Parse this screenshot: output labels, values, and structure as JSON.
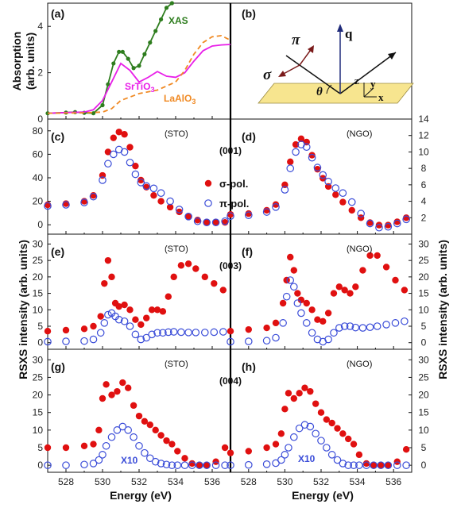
{
  "figure": {
    "x_label": "Energy (eV)",
    "left_y_label": "RSXS intensity (arb. units)",
    "right_y_label": "RSXS intensity (arb. units)",
    "absorption_y_label": [
      "Absorption",
      "(arb. units)"
    ],
    "x_ticks": [
      "528",
      "530",
      "532",
      "534",
      "536"
    ],
    "legend": {
      "sigma": "σ-pol.",
      "pi": "π-pol."
    },
    "colors": {
      "sigma": "#e01010",
      "pi": "#3a4cd8",
      "xas": "#2e7d1e",
      "srtio3": "#e81ee8",
      "laalo3": "#f08a24",
      "plane": "#f7e58f"
    }
  },
  "panels": {
    "a": {
      "label": "(a)",
      "curves": {
        "xas": "XAS",
        "srtio3": "SrTiO",
        "srtio3_sub": "3",
        "laalo3": "LaAlO",
        "laalo3_sub": "3"
      }
    },
    "b": {
      "label": "(b)",
      "symbols": {
        "pi": "π",
        "sigma": "σ",
        "q": "q",
        "theta": "θ",
        "x": "x",
        "y": "y",
        "z": "z"
      }
    },
    "c": {
      "label": "(c)",
      "substrate": "(STO)"
    },
    "d": {
      "label": "(d)",
      "substrate": "(NGO)"
    },
    "e": {
      "label": "(e)",
      "substrate": "(STO)"
    },
    "f": {
      "label": "(f)",
      "substrate": "(NGO)"
    },
    "g": {
      "label": "(g)",
      "substrate": "(STO)",
      "scale_note": "X10"
    },
    "h": {
      "label": "(h)",
      "substrate": "(NGO)",
      "scale_note": "X10"
    }
  },
  "reflections": {
    "r001": "(001)",
    "r003": "(003)",
    "r004": "(004)"
  },
  "chart_data": [
    {
      "panel": "a",
      "type": "line",
      "xlim": [
        527,
        537
      ],
      "ylim": [
        0,
        5
      ],
      "y_ticks": [
        0,
        2,
        4
      ],
      "series": [
        {
          "name": "XAS",
          "style": "line+filled-dots",
          "color": "#2e7d1e",
          "x": [
            527,
            528,
            528.5,
            529,
            529.5,
            530,
            530.3,
            530.6,
            530.9,
            531.1,
            531.4,
            531.7,
            532.0,
            532.3,
            532.6,
            532.9,
            533.2,
            533.5,
            533.8
          ],
          "y": [
            0.25,
            0.28,
            0.3,
            0.27,
            0.25,
            0.6,
            1.5,
            2.4,
            2.9,
            2.9,
            2.6,
            2.2,
            2.3,
            2.8,
            3.3,
            3.8,
            4.3,
            4.8,
            5.0
          ]
        },
        {
          "name": "SrTiO3",
          "style": "solid",
          "color": "#e81ee8",
          "x": [
            527,
            528,
            529,
            529.5,
            530,
            530.5,
            531,
            531.5,
            532,
            532.5,
            533,
            533.5,
            534,
            534.5,
            535,
            535.5,
            536,
            536.5,
            537
          ],
          "y": [
            0.25,
            0.28,
            0.3,
            0.4,
            0.8,
            1.6,
            2.4,
            2.1,
            1.6,
            1.8,
            2.05,
            1.85,
            1.8,
            2.0,
            2.5,
            2.95,
            3.15,
            3.2,
            3.22
          ]
        },
        {
          "name": "LaAlO3",
          "style": "dashed",
          "color": "#f08a24",
          "x": [
            527,
            528,
            529,
            530,
            530.5,
            531,
            532,
            533,
            534,
            534.5,
            535,
            535.5,
            536,
            536.5,
            537
          ],
          "y": [
            0.25,
            0.26,
            0.27,
            0.3,
            0.45,
            0.8,
            1.1,
            1.25,
            1.6,
            2.1,
            2.8,
            3.3,
            3.55,
            3.6,
            3.4
          ]
        }
      ]
    },
    {
      "panel": "c",
      "type": "scatter",
      "substrate": "STO",
      "reflection": "(001)",
      "xlim": [
        527,
        537
      ],
      "ylim": [
        -8,
        90
      ],
      "y_ticks": [
        0,
        20,
        40,
        60,
        80
      ],
      "series": [
        {
          "name": "σ-pol.",
          "marker": "filled-circle",
          "color": "#e01010",
          "x": [
            527,
            528,
            529,
            529.5,
            530,
            530.3,
            530.6,
            530.9,
            531.2,
            531.5,
            531.8,
            532.1,
            532.4,
            532.8,
            533.2,
            533.7,
            534.2,
            534.7,
            535.2,
            535.7,
            536.2,
            536.7
          ],
          "y": [
            17,
            18,
            20,
            25,
            42,
            62,
            74,
            79,
            77,
            66,
            50,
            38,
            32,
            25,
            20,
            15,
            11,
            7,
            4,
            2,
            2,
            2
          ]
        },
        {
          "name": "π-pol.",
          "marker": "open-circle",
          "color": "#3a4cd8",
          "x": [
            527,
            528,
            529,
            529.5,
            530,
            530.3,
            530.6,
            530.9,
            531.2,
            531.5,
            531.8,
            532.1,
            532.4,
            532.8,
            533.2,
            533.7,
            534.2,
            534.7,
            535.2,
            535.7,
            536.2,
            536.7
          ],
          "y": [
            16,
            17,
            19,
            24,
            38,
            52,
            60,
            64,
            62,
            53,
            43,
            36,
            33,
            31,
            27,
            20,
            13,
            7,
            3,
            2,
            2,
            3
          ]
        }
      ]
    },
    {
      "panel": "d",
      "type": "scatter",
      "substrate": "NGO",
      "reflection": "(001)",
      "xlim": [
        527,
        537
      ],
      "y_axis": "right",
      "ylim": [
        0,
        14
      ],
      "y_ticks": [
        2,
        4,
        6,
        8,
        10,
        12,
        14
      ],
      "series": [
        {
          "name": "σ-pol.",
          "marker": "filled-circle",
          "color": "#e01010",
          "x": [
            527,
            528,
            529,
            529.5,
            530,
            530.3,
            530.6,
            530.9,
            531.2,
            531.5,
            531.8,
            532.1,
            532.4,
            532.8,
            533.2,
            533.7,
            534.2,
            534.7,
            535.2,
            535.7,
            536.2,
            536.7
          ],
          "y": [
            2.4,
            2.5,
            2.9,
            3.6,
            6.0,
            8.8,
            10.9,
            11.6,
            11.2,
            9.6,
            7.9,
            6.8,
            5.8,
            4.8,
            3.9,
            2.9,
            2.0,
            1.4,
            1.1,
            1.1,
            1.5,
            2.0
          ]
        },
        {
          "name": "π-pol.",
          "marker": "open-circle",
          "color": "#3a4cd8",
          "x": [
            527,
            528,
            529,
            529.5,
            530,
            530.3,
            530.6,
            530.9,
            531.2,
            531.5,
            531.8,
            532.1,
            532.4,
            532.8,
            533.2,
            533.7,
            534.2,
            534.7,
            535.2,
            535.7,
            536.2,
            536.7
          ],
          "y": [
            2.2,
            2.3,
            2.7,
            3.3,
            5.4,
            8.0,
            10.0,
            10.9,
            10.6,
            9.3,
            8.1,
            7.2,
            6.4,
            5.6,
            5.0,
            3.9,
            2.5,
            1.3,
            0.8,
            0.9,
            1.3,
            1.8
          ]
        }
      ]
    },
    {
      "panel": "e",
      "type": "scatter",
      "substrate": "STO",
      "reflection": "(003)",
      "xlim": [
        527,
        537
      ],
      "ylim": [
        -2,
        33
      ],
      "y_ticks": [
        0,
        5,
        10,
        15,
        20,
        25,
        30
      ],
      "series": [
        {
          "name": "σ-pol.",
          "marker": "filled-circle",
          "color": "#e01010",
          "x": [
            527,
            528,
            529,
            529.5,
            529.9,
            530.1,
            530.3,
            530.5,
            530.7,
            530.9,
            531.2,
            531.5,
            531.8,
            532.1,
            532.4,
            532.7,
            533.0,
            533.3,
            533.6,
            533.9,
            534.3,
            534.7,
            535.1,
            535.6,
            536.1,
            536.6
          ],
          "y": [
            3.5,
            3.8,
            4.2,
            5,
            8,
            18,
            25,
            20,
            12,
            11,
            11.5,
            10,
            7,
            5.5,
            7.5,
            10,
            10,
            9.5,
            14,
            20,
            23.5,
            24,
            22.5,
            20,
            18,
            16
          ]
        },
        {
          "name": "π-pol.",
          "marker": "open-circle",
          "color": "#3a4cd8",
          "x": [
            527,
            528,
            529,
            529.5,
            529.9,
            530.1,
            530.3,
            530.5,
            530.7,
            530.9,
            531.2,
            531.5,
            531.8,
            532.1,
            532.4,
            532.7,
            533.0,
            533.3,
            533.6,
            533.9,
            534.3,
            534.7,
            535.1,
            535.6,
            536.1,
            536.6
          ],
          "y": [
            0.3,
            0.4,
            0.5,
            1,
            3,
            6,
            8.5,
            9,
            8,
            7,
            6.5,
            5,
            2.5,
            1,
            1.5,
            2.5,
            3,
            3,
            3.2,
            3.3,
            3.2,
            3.1,
            3.1,
            3.1,
            3.2,
            3.3
          ]
        }
      ]
    },
    {
      "panel": "f",
      "type": "scatter",
      "substrate": "NGO",
      "reflection": "(003)",
      "xlim": [
        527,
        537
      ],
      "y_axis": "right",
      "ylim": [
        -2,
        33
      ],
      "y_ticks": [
        0,
        5,
        10,
        15,
        20,
        25,
        30
      ],
      "series": [
        {
          "name": "σ-pol.",
          "marker": "filled-circle",
          "color": "#e01010",
          "x": [
            527,
            528,
            529,
            529.5,
            529.9,
            530.1,
            530.3,
            530.5,
            530.7,
            530.9,
            531.2,
            531.5,
            531.8,
            532.1,
            532.4,
            532.7,
            533.0,
            533.3,
            533.6,
            533.9,
            534.3,
            534.7,
            535.1,
            535.6,
            536.1,
            536.6
          ],
          "y": [
            3.5,
            4,
            4.5,
            6,
            12,
            19,
            26,
            22,
            15,
            13,
            12,
            10,
            7,
            6.5,
            9,
            15,
            17,
            16,
            15,
            17,
            22,
            26.5,
            26.5,
            23,
            19,
            16
          ]
        },
        {
          "name": "π-pol.",
          "marker": "open-circle",
          "color": "#3a4cd8",
          "x": [
            527,
            528,
            529,
            529.5,
            529.9,
            530.1,
            530.3,
            530.5,
            530.7,
            530.9,
            531.2,
            531.5,
            531.8,
            532.1,
            532.4,
            532.7,
            533.0,
            533.3,
            533.6,
            533.9,
            534.3,
            534.7,
            535.1,
            535.6,
            536.1,
            536.6
          ],
          "y": [
            0.3,
            0.4,
            0.6,
            1.5,
            6,
            14,
            19,
            17,
            12,
            9,
            6,
            3,
            1,
            0.3,
            1,
            3,
            4.5,
            5,
            5,
            4.6,
            4.5,
            4.7,
            5,
            5.5,
            6,
            6.5
          ]
        }
      ]
    },
    {
      "panel": "g",
      "type": "scatter",
      "substrate": "STO",
      "reflection": "(004)",
      "xlim": [
        527,
        537
      ],
      "ylim": [
        -2,
        33
      ],
      "y_ticks": [
        0,
        5,
        10,
        15,
        20,
        25,
        30
      ],
      "annotation": "π-pol. scaled X10",
      "series": [
        {
          "name": "σ-pol.",
          "marker": "filled-circle",
          "color": "#e01010",
          "x": [
            527,
            528,
            529,
            529.5,
            529.8,
            530.0,
            530.2,
            530.5,
            530.8,
            531.1,
            531.4,
            531.7,
            532.0,
            532.3,
            532.6,
            532.9,
            533.2,
            533.5,
            533.8,
            534.1,
            534.5,
            534.9,
            535.3,
            535.7,
            536.2,
            536.7
          ],
          "y": [
            5,
            5,
            5.5,
            6,
            10,
            19,
            23,
            20,
            21,
            23.5,
            22,
            17,
            14,
            12.5,
            11.5,
            10,
            8.5,
            7,
            6,
            4,
            2,
            0.5,
            0,
            0,
            1,
            5
          ]
        },
        {
          "name": "π-pol.",
          "marker": "open-circle",
          "color": "#3a4cd8",
          "x": [
            527,
            528,
            529,
            529.5,
            529.8,
            530.0,
            530.2,
            530.5,
            530.8,
            531.1,
            531.4,
            531.7,
            532.0,
            532.3,
            532.6,
            532.9,
            533.2,
            533.5,
            533.8,
            534.1,
            534.5,
            534.9,
            535.3,
            535.7,
            536.2,
            536.7
          ],
          "y": [
            0,
            0,
            0.2,
            0.5,
            1.5,
            3,
            5.5,
            8,
            10,
            11,
            10,
            8,
            5.5,
            3.5,
            2,
            1,
            0.5,
            0.2,
            0,
            0,
            0,
            0,
            0,
            0,
            0,
            0
          ]
        }
      ]
    },
    {
      "panel": "h",
      "type": "scatter",
      "substrate": "NGO",
      "reflection": "(004)",
      "xlim": [
        527,
        537
      ],
      "y_axis": "right",
      "ylim": [
        -2,
        33
      ],
      "y_ticks": [
        0,
        5,
        10,
        15,
        20,
        25,
        30
      ],
      "annotation": "π-pol. scaled X10",
      "series": [
        {
          "name": "σ-pol.",
          "marker": "filled-circle",
          "color": "#e01010",
          "x": [
            527,
            528,
            529,
            529.5,
            529.8,
            530.0,
            530.2,
            530.5,
            530.8,
            531.1,
            531.4,
            531.7,
            532.0,
            532.3,
            532.6,
            532.9,
            533.2,
            533.5,
            533.8,
            534.1,
            534.5,
            534.9,
            535.3,
            535.7,
            536.2,
            536.7
          ],
          "y": [
            3.5,
            4,
            5,
            6,
            9,
            16,
            20.5,
            19,
            20.5,
            22,
            21,
            17.5,
            15,
            13,
            12,
            10.5,
            9,
            7.5,
            6,
            3,
            0.5,
            0,
            0,
            0,
            1,
            4.5
          ]
        },
        {
          "name": "π-pol.",
          "marker": "open-circle",
          "color": "#3a4cd8",
          "x": [
            527,
            528,
            529,
            529.5,
            529.8,
            530.0,
            530.2,
            530.5,
            530.8,
            531.1,
            531.4,
            531.7,
            532.0,
            532.3,
            532.6,
            532.9,
            533.2,
            533.5,
            533.8,
            534.1,
            534.5,
            534.9,
            535.3,
            535.7,
            536.2,
            536.7
          ],
          "y": [
            0,
            0.1,
            0.3,
            0.6,
            1.5,
            3,
            5,
            8,
            10.5,
            11.5,
            11,
            9,
            7,
            5,
            3,
            1.5,
            0.5,
            0,
            0,
            0,
            0,
            0,
            0,
            0,
            0,
            0
          ]
        }
      ]
    }
  ]
}
